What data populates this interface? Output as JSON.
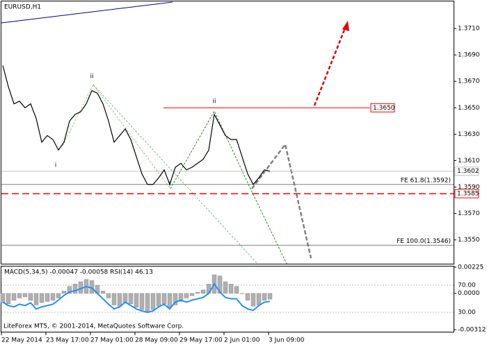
{
  "chart_data": [
    {
      "type": "line",
      "title": "EURUSD,H1",
      "color": "#000000",
      "categories": [
        "22 May 2014",
        null,
        null,
        null,
        null,
        null,
        null,
        null,
        "23 May 17:00",
        null,
        null,
        null,
        null,
        null,
        null,
        null,
        "27 May 01:00",
        null,
        null,
        null,
        null,
        null,
        null,
        null,
        "28 May 09:00",
        null,
        null,
        null,
        null,
        null,
        null,
        null,
        "29 May 17:00",
        null,
        null,
        null,
        null,
        null,
        null,
        null,
        "2 Jun 01:00",
        null,
        null,
        null,
        null,
        null,
        null,
        null,
        "3 Jun 09:00"
      ],
      "values": [
        1.3682,
        1.3666,
        1.3653,
        1.3655,
        1.365,
        1.3653,
        1.3642,
        1.3624,
        1.3629,
        1.3626,
        1.3618,
        1.3624,
        1.364,
        1.3645,
        1.3647,
        1.3653,
        1.3663,
        1.3661,
        1.3653,
        1.364,
        1.3624,
        1.3629,
        1.3634,
        1.3626,
        1.3613,
        1.36,
        1.3592,
        1.3592,
        1.3597,
        1.3603,
        1.3592,
        1.3605,
        1.3608,
        1.3603,
        1.3605,
        1.3608,
        1.3611,
        1.3618,
        1.3645,
        1.3637,
        1.3629,
        1.3626,
        1.3626,
        1.3613,
        1.36,
        1.3592,
        1.3597,
        1.3603,
        1.3602
      ],
      "ylim": [
        1.3532,
        1.373
      ],
      "yticks": [
        {
          "value": 1.371,
          "label": "1.3710"
        },
        {
          "value": 1.369,
          "label": "1.3690"
        },
        {
          "value": 1.367,
          "label": "1.3670"
        },
        {
          "value": 1.365,
          "label": "1.3650"
        },
        {
          "value": 1.363,
          "label": "1.3630"
        },
        {
          "value": 1.361,
          "label": "1.3610"
        },
        {
          "value": 1.359,
          "label": "1.3590"
        },
        {
          "value": 1.357,
          "label": "1.3570"
        },
        {
          "value": 1.355,
          "label": "1.3550"
        }
      ],
      "levels": [
        {
          "value": 1.365,
          "label": "1.3650",
          "color": "#ff0000",
          "style": "solid"
        },
        {
          "value": 1.3585,
          "label": "1.3585",
          "color": "#ff0000",
          "style": "dashed"
        },
        {
          "value": 1.3602,
          "label": "1.3602",
          "color": "#c0c0c0",
          "style": "current"
        }
      ],
      "fibo": [
        {
          "value": 1.3592,
          "label": "FE 61.8(1.3592)"
        },
        {
          "value": 1.3546,
          "label": "FE 100.0(1.3546)"
        }
      ],
      "annotations": [
        {
          "text": "ii",
          "color": "#808080"
        },
        {
          "text": "i",
          "color": "#808080"
        },
        {
          "text": "i",
          "color": "#228b22"
        },
        {
          "text": "ii",
          "color": "#228b22"
        }
      ],
      "footer": "LiteForex MT5, © 2001-2014, MetaQuotes Software Corp."
    },
    {
      "type": "bar",
      "title": "MACD(5,34,5) -0.00047 -0.00058 RSI(14) 46.13",
      "series": [
        {
          "color": "#b0b0b0",
          "values": [
            -0.0008,
            -0.0009,
            -0.0006,
            -0.0004,
            -0.0003,
            -0.0006,
            -0.001,
            -0.0008,
            -0.0007,
            -0.0006,
            -0.0004,
            0.0002,
            0.0006,
            0.0008,
            0.001,
            0.0012,
            0.0011,
            0.0007,
            0.0002,
            -0.0004,
            -0.001,
            -0.0011,
            -0.0008,
            -0.0009,
            -0.0012,
            -0.0014,
            -0.0016,
            -0.0014,
            -0.0011,
            -0.0009,
            -0.0012,
            -0.001,
            -0.0007,
            -0.0004,
            -0.0002,
            0.0001,
            0.0003,
            0.0008,
            0.0016,
            0.0015,
            0.001,
            0.0008,
            0.0006,
            0,
            -0.0006,
            -0.0011,
            -0.001,
            -0.0006,
            -0.0005
          ]
        },
        {
          "color": "#1e90ff",
          "axis": "y2",
          "values": [
            45,
            40,
            38,
            42,
            40,
            44,
            35,
            38,
            40,
            42,
            48,
            55,
            60,
            62,
            65,
            68,
            66,
            58,
            50,
            42,
            35,
            38,
            45,
            40,
            35,
            32,
            30,
            32,
            38,
            42,
            35,
            45,
            48,
            45,
            48,
            50,
            52,
            58,
            72,
            60,
            52,
            50,
            50,
            40,
            35,
            33,
            40,
            45,
            46.13
          ]
        }
      ],
      "ylim": [
        -0.00312,
        0.00225
      ],
      "yticks": [
        0.00225,
        {
          "value": 0,
          "label": "0.0000"
        },
        -0.00312
      ],
      "y2lim": [
        4.4,
        96.7
      ],
      "y2ticks": [
        {
          "value": 70,
          "label": "70.00"
        },
        {
          "value": 30,
          "label": "30.00"
        }
      ]
    }
  ]
}
